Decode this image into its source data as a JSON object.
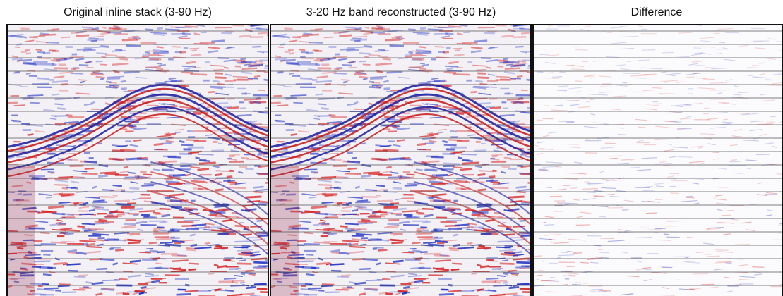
{
  "panels": [
    {
      "title": "Original inline stack (3-90 Hz)"
    },
    {
      "title": "3-20 Hz band reconstructed  (3-90 Hz)"
    },
    {
      "title": "Difference"
    }
  ]
}
